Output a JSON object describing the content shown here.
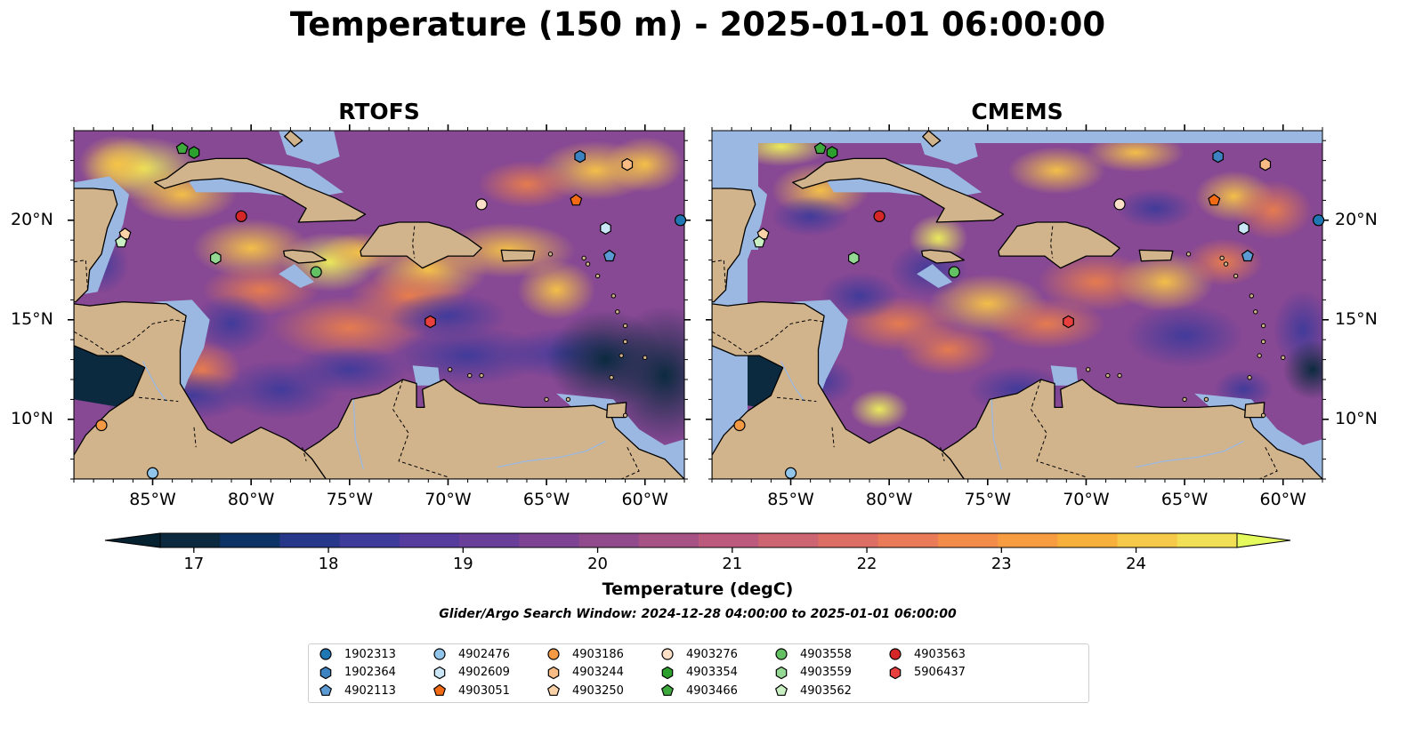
{
  "title": "Temperature (150 m) - 2025-01-01 06:00:00",
  "panels": [
    {
      "title": "RTOFS"
    },
    {
      "title": "CMEMS"
    }
  ],
  "axes": {
    "lon_labels": [
      "85°W",
      "80°W",
      "75°W",
      "70°W",
      "65°W",
      "60°W"
    ],
    "lon_values": [
      -85,
      -80,
      -75,
      -70,
      -65,
      -60
    ],
    "lat_labels": [
      "10°N",
      "15°N",
      "20°N"
    ],
    "lat_values": [
      10,
      15,
      20
    ],
    "lon_range": [
      -89,
      -58
    ],
    "lat_range": [
      7,
      24.5
    ]
  },
  "colorbar": {
    "label": "Temperature (degC)",
    "ticks": [
      "17",
      "18",
      "19",
      "20",
      "21",
      "22",
      "23",
      "24"
    ],
    "range": [
      16.75,
      24.75
    ],
    "colors": [
      "#0b2a3f",
      "#0d3366",
      "#27388a",
      "#3f3b9b",
      "#563d9d",
      "#693f9a",
      "#7c4493",
      "#914b8d",
      "#a65285",
      "#bb5a7c",
      "#cc6472",
      "#dd6e66",
      "#ea7b58",
      "#f38b4b",
      "#f79c40",
      "#f8b03c",
      "#f6c94a",
      "#f1e055"
    ],
    "extend_low": "#06212f",
    "extend_high": "#e4fa5d"
  },
  "search_window": "Glider/Argo Search Window: 2024-12-28 04:00:00 to 2025-01-01 06:00:00",
  "colors": {
    "land": "#d2b48c",
    "shelf": "#9ab8e2",
    "border": "#000000"
  },
  "floats": [
    {
      "id": "1902313",
      "marker": "circle",
      "color": "#1f77b4",
      "lon": -58.2,
      "lat": 20.0
    },
    {
      "id": "1902364",
      "marker": "hexagon",
      "color": "#3d83c2",
      "lon": -63.3,
      "lat": 23.2
    },
    {
      "id": "4902113",
      "marker": "pentagon",
      "color": "#5c9ad3",
      "lon": -61.8,
      "lat": 18.2
    },
    {
      "id": "4902476",
      "marker": "circle",
      "color": "#91c6ea",
      "lon": -85.0,
      "lat": 7.3
    },
    {
      "id": "4902609",
      "marker": "hexagon",
      "color": "#cbe6f7",
      "lon": -62.0,
      "lat": 19.6
    },
    {
      "id": "4903051",
      "marker": "pentagon",
      "color": "#f26a13",
      "lon": -63.5,
      "lat": 21.0
    },
    {
      "id": "4903186",
      "marker": "circle",
      "color": "#f49a45",
      "lon": -87.6,
      "lat": 9.7
    },
    {
      "id": "4903244",
      "marker": "hexagon",
      "color": "#f8bb84",
      "lon": -60.9,
      "lat": 22.8
    },
    {
      "id": "4903250",
      "marker": "pentagon",
      "color": "#fbd2a8",
      "lon": -86.4,
      "lat": 19.3
    },
    {
      "id": "4903276",
      "marker": "circle",
      "color": "#fde0c8",
      "lon": -68.3,
      "lat": 20.8
    },
    {
      "id": "4903354",
      "marker": "hexagon",
      "color": "#2ca02c",
      "lon": -82.9,
      "lat": 23.4
    },
    {
      "id": "4903466",
      "marker": "pentagon",
      "color": "#3eaa3e",
      "lon": -83.5,
      "lat": 23.6
    },
    {
      "id": "4903558",
      "marker": "circle",
      "color": "#63c163",
      "lon": -76.7,
      "lat": 17.4
    },
    {
      "id": "4903559",
      "marker": "hexagon",
      "color": "#93d993",
      "lon": -81.8,
      "lat": 18.1
    },
    {
      "id": "4903562",
      "marker": "pentagon",
      "color": "#c9efc2",
      "lon": -86.6,
      "lat": 18.9
    },
    {
      "id": "4903563",
      "marker": "circle",
      "color": "#d62728",
      "lon": -80.5,
      "lat": 20.2
    },
    {
      "id": "5906437",
      "marker": "hexagon",
      "color": "#e8403e",
      "lon": -70.9,
      "lat": 14.9
    }
  ]
}
